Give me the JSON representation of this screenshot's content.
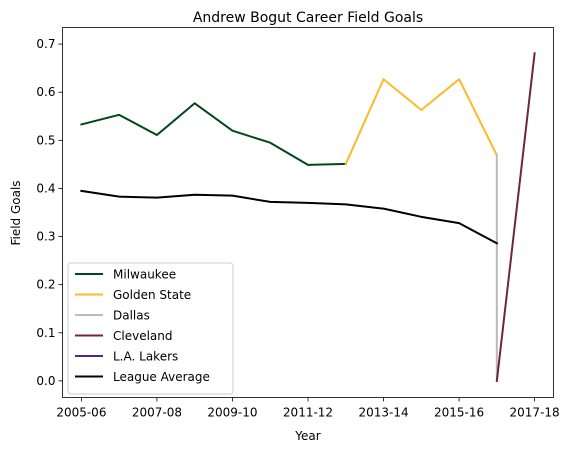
{
  "chart_data": {
    "type": "line",
    "title": "Andrew Bogut Career Field Goals",
    "xlabel": "Year",
    "ylabel": "Field Goals",
    "x_ticks": [
      "2005-06",
      "2007-08",
      "2009-10",
      "2011-12",
      "2013-14",
      "2015-16",
      "2017-18"
    ],
    "y_ticks": [
      "0.0",
      "0.1",
      "0.2",
      "0.3",
      "0.4",
      "0.5",
      "0.6",
      "0.7"
    ],
    "xlim": [
      "2005-06",
      "2017-18"
    ],
    "ylim": [
      0.0,
      0.7
    ],
    "grid": false,
    "legend_position": "lower-left",
    "series": [
      {
        "name": "Milwaukee",
        "color": "#00471b",
        "x": [
          "2005-06",
          "2006-07",
          "2007-08",
          "2008-09",
          "2009-10",
          "2010-11",
          "2011-12",
          "2012-13"
        ],
        "values": [
          0.533,
          0.553,
          0.511,
          0.577,
          0.52,
          0.495,
          0.449,
          0.451
        ]
      },
      {
        "name": "Golden State",
        "color": "#fdb927",
        "x": [
          "2012-13",
          "2013-14",
          "2014-15",
          "2015-16",
          "2016-17"
        ],
        "values": [
          0.451,
          0.627,
          0.563,
          0.627,
          0.469
        ]
      },
      {
        "name": "Dallas",
        "color": "#bbbbbb",
        "x": [
          "2016-17",
          "2016-17"
        ],
        "values": [
          0.469,
          0.0
        ]
      },
      {
        "name": "Cleveland",
        "color": "#6f263d",
        "x": [
          "2016-17",
          "2017-18"
        ],
        "values": [
          0.0,
          0.681
        ]
      },
      {
        "name": "L.A. Lakers",
        "color": "#552583",
        "x": [],
        "values": []
      },
      {
        "name": "League Average",
        "color": "#000000",
        "x": [
          "2005-06",
          "2006-07",
          "2007-08",
          "2008-09",
          "2009-10",
          "2010-11",
          "2011-12",
          "2012-13",
          "2013-14",
          "2014-15",
          "2015-16",
          "2016-17"
        ],
        "values": [
          0.395,
          0.383,
          0.381,
          0.387,
          0.385,
          0.372,
          0.37,
          0.367,
          0.358,
          0.341,
          0.328,
          0.286
        ]
      }
    ]
  }
}
